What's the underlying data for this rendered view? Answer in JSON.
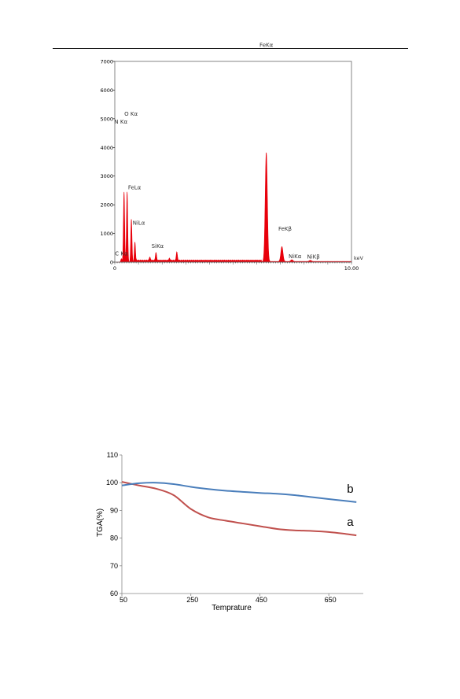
{
  "chart_data": [
    {
      "type": "area",
      "xlabel": "keV",
      "xlim": [
        0,
        10
      ],
      "ylim": [
        0,
        7000
      ],
      "x_tick_labels": [
        "0",
        "10.00"
      ],
      "y_tick_labels": [
        "0",
        "1000",
        "2000",
        "3000",
        "4000",
        "5000",
        "6000",
        "7000"
      ],
      "grid": false,
      "color": "#e8000b",
      "peaks": [
        {
          "label": "C Kα",
          "x": 0.28,
          "y": 120
        },
        {
          "label": "N Kα",
          "x": 0.39,
          "y": 2450
        },
        {
          "label": "O Kα",
          "x": 0.52,
          "y": 2450
        },
        {
          "label": "FeLα",
          "x": 0.7,
          "y": 1500
        },
        {
          "label": "NiLα",
          "x": 0.85,
          "y": 700
        },
        {
          "label": "SiKα",
          "x": 1.74,
          "y": 280
        },
        {
          "label": "FeKα",
          "x": 6.4,
          "y": 3800
        },
        {
          "label": "FeKβ",
          "x": 7.06,
          "y": 520
        },
        {
          "label": "NiKα",
          "x": 7.48,
          "y": 60
        },
        {
          "label": "NiKβ",
          "x": 8.26,
          "y": 40
        }
      ],
      "minor_peaks": [
        {
          "x": 1.48,
          "y": 120
        },
        {
          "x": 2.31,
          "y": 70
        },
        {
          "x": 2.62,
          "y": 300
        }
      ]
    },
    {
      "type": "line",
      "xlabel": "Temprature",
      "ylabel": "TGA(%)",
      "xlim": [
        50,
        750
      ],
      "ylim": [
        60,
        110
      ],
      "x_ticks": [
        50,
        250,
        450,
        650
      ],
      "y_ticks": [
        60,
        70,
        80,
        90,
        100,
        110
      ],
      "grid": false,
      "series": [
        {
          "name": "a",
          "color": "#c0504d",
          "x": [
            50,
            100,
            150,
            200,
            250,
            300,
            350,
            400,
            450,
            500,
            550,
            600,
            650,
            700,
            730
          ],
          "y": [
            100.3,
            99.0,
            97.8,
            95.5,
            90.5,
            87.5,
            86.3,
            85.3,
            84.3,
            83.3,
            82.8,
            82.6,
            82.2,
            81.5,
            81.0
          ]
        },
        {
          "name": "b",
          "color": "#4a7ebb",
          "x": [
            50,
            100,
            150,
            200,
            250,
            300,
            350,
            400,
            450,
            500,
            550,
            600,
            650,
            700,
            730
          ],
          "y": [
            99.0,
            99.8,
            100.0,
            99.5,
            98.5,
            97.7,
            97.1,
            96.7,
            96.3,
            96.0,
            95.5,
            94.8,
            94.1,
            93.4,
            93.0
          ]
        }
      ]
    }
  ]
}
